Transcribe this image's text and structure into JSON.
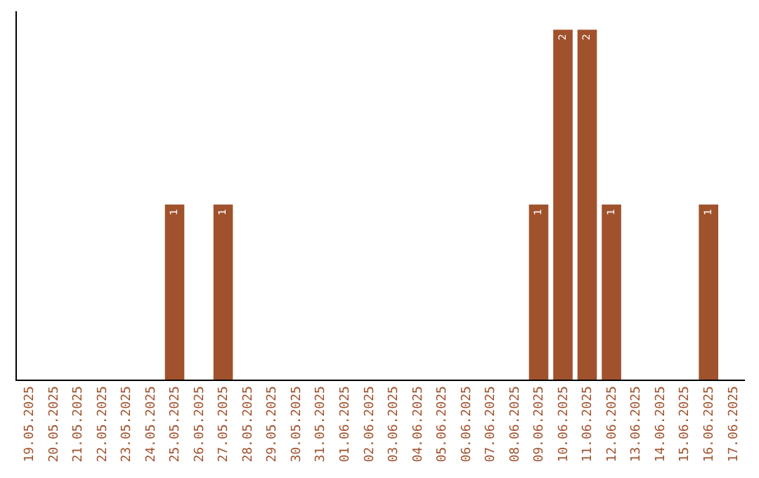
{
  "chart_data": {
    "type": "bar",
    "categories": [
      "19.05.2025",
      "20.05.2025",
      "21.05.2025",
      "22.05.2025",
      "23.05.2025",
      "24.05.2025",
      "25.05.2025",
      "26.05.2025",
      "27.05.2025",
      "28.05.2025",
      "29.05.2025",
      "30.05.2025",
      "31.05.2025",
      "01.06.2025",
      "02.06.2025",
      "03.06.2025",
      "04.06.2025",
      "05.06.2025",
      "06.06.2025",
      "07.06.2025",
      "08.06.2025",
      "09.06.2025",
      "10.06.2025",
      "11.06.2025",
      "12.06.2025",
      "13.06.2025",
      "14.06.2025",
      "15.06.2025",
      "16.06.2025",
      "17.06.2025"
    ],
    "values": [
      0,
      0,
      0,
      0,
      0,
      0,
      1,
      0,
      1,
      0,
      0,
      0,
      0,
      0,
      0,
      0,
      0,
      0,
      0,
      0,
      0,
      1,
      2,
      2,
      1,
      0,
      0,
      0,
      1,
      0
    ],
    "value_labels": [
      null,
      null,
      null,
      null,
      null,
      null,
      "1",
      null,
      "1",
      null,
      null,
      null,
      null,
      null,
      null,
      null,
      null,
      null,
      null,
      null,
      null,
      "1",
      "2",
      "2",
      "1",
      null,
      null,
      null,
      "1",
      null
    ],
    "color": "#a0522d",
    "grid": false,
    "tick_labels": "x"
  }
}
